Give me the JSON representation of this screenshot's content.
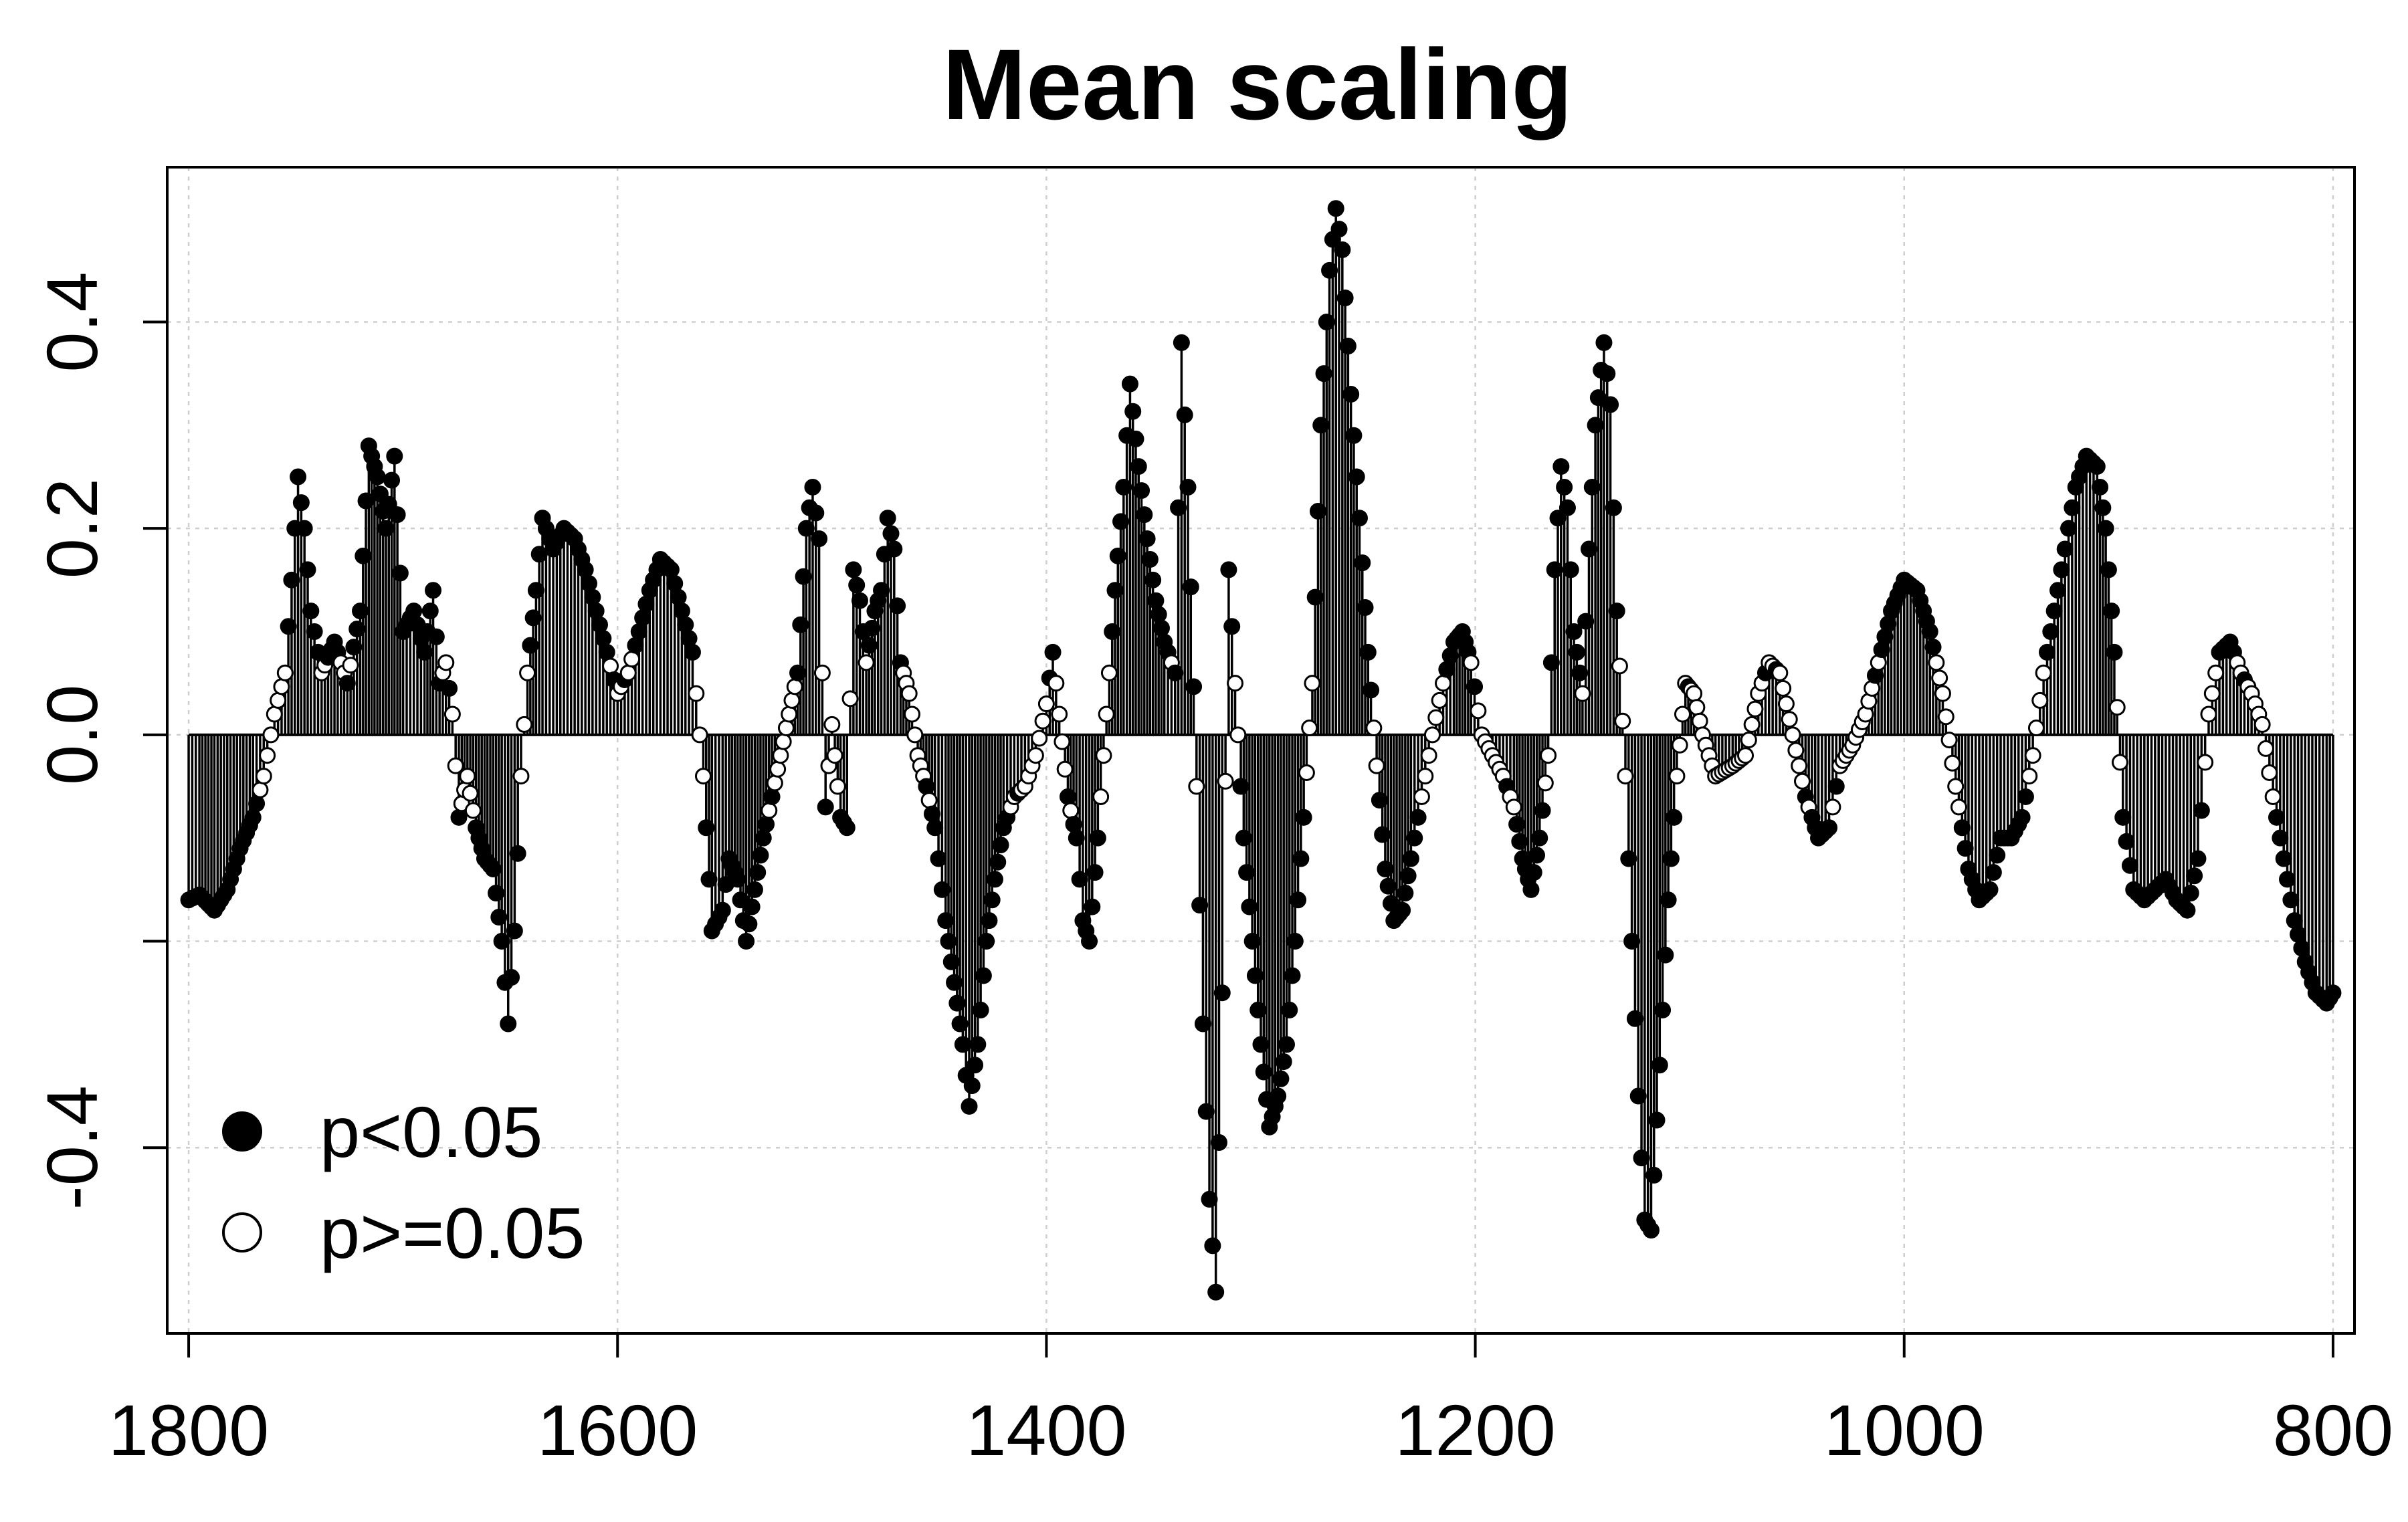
{
  "chart_data": {
    "type": "scatter",
    "title": "Mean scaling",
    "xlabel": "",
    "ylabel": "",
    "x_reversed": true,
    "xlim": [
      1810,
      790
    ],
    "ylim": [
      -0.58,
      0.55
    ],
    "x_ticks": [
      1800,
      1600,
      1400,
      1200,
      1000,
      800
    ],
    "x_tick_labels": [
      "1800",
      "1600",
      "1400",
      "1200",
      "1000",
      "800"
    ],
    "y_ticks": [
      -0.4,
      -0.2,
      0.0,
      0.2,
      0.4
    ],
    "y_tick_labels": [
      "-0.4",
      "",
      "0.0",
      "0.2",
      "0.4"
    ],
    "grid": true,
    "style": "vertical lines from zero to each point",
    "legend": {
      "position": "bottom-left",
      "entries": [
        {
          "label": "p<0.05",
          "marker": "filled-circle"
        },
        {
          "label": "p>=0.05",
          "marker": "open-circle"
        }
      ]
    },
    "colors": {
      "marker": "#000000",
      "grid": "#cfcfcf"
    },
    "profile_points": [
      [
        1800,
        -0.16
      ],
      [
        1795,
        -0.155
      ],
      [
        1788,
        -0.17
      ],
      [
        1782,
        -0.15
      ],
      [
        1776,
        -0.11
      ],
      [
        1770,
        -0.08
      ],
      [
        1765,
        -0.04
      ],
      [
        1760,
        0.02
      ],
      [
        1755,
        0.06
      ],
      [
        1752,
        0.15
      ],
      [
        1749,
        0.25
      ],
      [
        1746,
        0.2
      ],
      [
        1743,
        0.12
      ],
      [
        1738,
        0.06
      ],
      [
        1732,
        0.09
      ],
      [
        1726,
        0.05
      ],
      [
        1720,
        0.12
      ],
      [
        1716,
        0.28
      ],
      [
        1712,
        0.25
      ],
      [
        1708,
        0.2
      ],
      [
        1704,
        0.27
      ],
      [
        1700,
        0.1
      ],
      [
        1695,
        0.12
      ],
      [
        1690,
        0.08
      ],
      [
        1686,
        0.14
      ],
      [
        1683,
        0.05
      ],
      [
        1680,
        0.07
      ],
      [
        1677,
        0.02
      ],
      [
        1674,
        -0.08
      ],
      [
        1670,
        -0.04
      ],
      [
        1666,
        -0.09
      ],
      [
        1662,
        -0.12
      ],
      [
        1658,
        -0.13
      ],
      [
        1654,
        -0.2
      ],
      [
        1651,
        -0.28
      ],
      [
        1648,
        -0.19
      ],
      [
        1645,
        -0.04
      ],
      [
        1642,
        0.06
      ],
      [
        1638,
        0.14
      ],
      [
        1635,
        0.21
      ],
      [
        1630,
        0.18
      ],
      [
        1625,
        0.2
      ],
      [
        1620,
        0.19
      ],
      [
        1615,
        0.16
      ],
      [
        1610,
        0.12
      ],
      [
        1605,
        0.08
      ],
      [
        1600,
        0.04
      ],
      [
        1595,
        0.06
      ],
      [
        1590,
        0.1
      ],
      [
        1585,
        0.14
      ],
      [
        1580,
        0.17
      ],
      [
        1575,
        0.16
      ],
      [
        1570,
        0.12
      ],
      [
        1565,
        0.08
      ],
      [
        1560,
        -0.04
      ],
      [
        1556,
        -0.19
      ],
      [
        1551,
        -0.17
      ],
      [
        1548,
        -0.12
      ],
      [
        1544,
        -0.14
      ],
      [
        1540,
        -0.2
      ],
      [
        1536,
        -0.15
      ],
      [
        1532,
        -0.1
      ],
      [
        1528,
        -0.06
      ],
      [
        1524,
        -0.02
      ],
      [
        1520,
        0.02
      ],
      [
        1516,
        0.06
      ],
      [
        1512,
        0.2
      ],
      [
        1509,
        0.24
      ],
      [
        1506,
        0.19
      ],
      [
        1503,
        -0.07
      ],
      [
        1500,
        0.01
      ],
      [
        1496,
        -0.08
      ],
      [
        1493,
        -0.09
      ],
      [
        1490,
        0.16
      ],
      [
        1487,
        0.13
      ],
      [
        1484,
        0.07
      ],
      [
        1480,
        0.12
      ],
      [
        1477,
        0.14
      ],
      [
        1474,
        0.21
      ],
      [
        1471,
        0.18
      ],
      [
        1468,
        0.07
      ],
      [
        1464,
        0.04
      ],
      [
        1460,
        -0.02
      ],
      [
        1456,
        -0.05
      ],
      [
        1452,
        -0.09
      ],
      [
        1447,
        -0.18
      ],
      [
        1443,
        -0.24
      ],
      [
        1439,
        -0.3
      ],
      [
        1436,
        -0.36
      ],
      [
        1432,
        -0.3
      ],
      [
        1428,
        -0.2
      ],
      [
        1424,
        -0.14
      ],
      [
        1420,
        -0.09
      ],
      [
        1415,
        -0.06
      ],
      [
        1410,
        -0.05
      ],
      [
        1405,
        -0.02
      ],
      [
        1400,
        0.03
      ],
      [
        1397,
        0.08
      ],
      [
        1394,
        0.02
      ],
      [
        1390,
        -0.06
      ],
      [
        1386,
        -0.1
      ],
      [
        1383,
        -0.18
      ],
      [
        1380,
        -0.2
      ],
      [
        1376,
        -0.1
      ],
      [
        1372,
        0.02
      ],
      [
        1368,
        0.14
      ],
      [
        1364,
        0.24
      ],
      [
        1361,
        0.34
      ],
      [
        1357,
        0.26
      ],
      [
        1353,
        0.19
      ],
      [
        1349,
        0.13
      ],
      [
        1345,
        0.09
      ],
      [
        1340,
        0.06
      ],
      [
        1337,
        0.38
      ],
      [
        1334,
        0.24
      ],
      [
        1330,
        -0.05
      ],
      [
        1327,
        -0.28
      ],
      [
        1324,
        -0.45
      ],
      [
        1321,
        -0.54
      ],
      [
        1318,
        -0.25
      ],
      [
        1315,
        0.16
      ],
      [
        1312,
        0.05
      ],
      [
        1308,
        -0.1
      ],
      [
        1304,
        -0.2
      ],
      [
        1300,
        -0.3
      ],
      [
        1296,
        -0.38
      ],
      [
        1292,
        -0.35
      ],
      [
        1288,
        -0.3
      ],
      [
        1284,
        -0.2
      ],
      [
        1280,
        -0.08
      ],
      [
        1276,
        0.05
      ],
      [
        1272,
        0.3
      ],
      [
        1268,
        0.45
      ],
      [
        1265,
        0.51
      ],
      [
        1262,
        0.47
      ],
      [
        1258,
        0.33
      ],
      [
        1254,
        0.21
      ],
      [
        1250,
        0.08
      ],
      [
        1246,
        -0.03
      ],
      [
        1242,
        -0.13
      ],
      [
        1238,
        -0.18
      ],
      [
        1234,
        -0.17
      ],
      [
        1230,
        -0.12
      ],
      [
        1225,
        -0.06
      ],
      [
        1220,
        0.0
      ],
      [
        1215,
        0.05
      ],
      [
        1210,
        0.09
      ],
      [
        1206,
        0.1
      ],
      [
        1202,
        0.07
      ],
      [
        1197,
        0.0
      ],
      [
        1192,
        -0.02
      ],
      [
        1187,
        -0.04
      ],
      [
        1182,
        -0.07
      ],
      [
        1178,
        -0.12
      ],
      [
        1174,
        -0.15
      ],
      [
        1170,
        -0.1
      ],
      [
        1166,
        -0.02
      ],
      [
        1163,
        0.16
      ],
      [
        1160,
        0.26
      ],
      [
        1157,
        0.22
      ],
      [
        1154,
        0.1
      ],
      [
        1150,
        0.04
      ],
      [
        1147,
        0.18
      ],
      [
        1144,
        0.3
      ],
      [
        1140,
        0.38
      ],
      [
        1137,
        0.32
      ],
      [
        1134,
        0.12
      ],
      [
        1130,
        -0.04
      ],
      [
        1127,
        -0.2
      ],
      [
        1124,
        -0.35
      ],
      [
        1121,
        -0.47
      ],
      [
        1118,
        -0.48
      ],
      [
        1114,
        -0.32
      ],
      [
        1110,
        -0.16
      ],
      [
        1106,
        -0.04
      ],
      [
        1102,
        0.05
      ],
      [
        1098,
        0.04
      ],
      [
        1094,
        0.0
      ],
      [
        1088,
        -0.04
      ],
      [
        1080,
        -0.03
      ],
      [
        1074,
        -0.02
      ],
      [
        1068,
        0.04
      ],
      [
        1063,
        0.07
      ],
      [
        1058,
        0.06
      ],
      [
        1052,
        0.0
      ],
      [
        1046,
        -0.06
      ],
      [
        1040,
        -0.1
      ],
      [
        1035,
        -0.09
      ],
      [
        1030,
        -0.03
      ],
      [
        1024,
        -0.01
      ],
      [
        1018,
        0.02
      ],
      [
        1012,
        0.07
      ],
      [
        1006,
        0.12
      ],
      [
        1000,
        0.15
      ],
      [
        994,
        0.14
      ],
      [
        988,
        0.1
      ],
      [
        982,
        0.04
      ],
      [
        976,
        -0.05
      ],
      [
        970,
        -0.13
      ],
      [
        965,
        -0.16
      ],
      [
        960,
        -0.15
      ],
      [
        955,
        -0.1
      ],
      [
        950,
        -0.1
      ],
      [
        945,
        -0.08
      ],
      [
        940,
        -0.02
      ],
      [
        935,
        0.06
      ],
      [
        930,
        0.12
      ],
      [
        925,
        0.18
      ],
      [
        920,
        0.24
      ],
      [
        915,
        0.27
      ],
      [
        910,
        0.26
      ],
      [
        906,
        0.2
      ],
      [
        902,
        0.08
      ],
      [
        898,
        -0.08
      ],
      [
        893,
        -0.15
      ],
      [
        888,
        -0.16
      ],
      [
        883,
        -0.15
      ],
      [
        878,
        -0.14
      ],
      [
        873,
        -0.16
      ],
      [
        868,
        -0.17
      ],
      [
        863,
        -0.12
      ],
      [
        858,
        0.02
      ],
      [
        853,
        0.08
      ],
      [
        848,
        0.09
      ],
      [
        843,
        0.06
      ],
      [
        838,
        0.04
      ],
      [
        833,
        0.01
      ],
      [
        828,
        -0.06
      ],
      [
        823,
        -0.12
      ],
      [
        818,
        -0.18
      ],
      [
        813,
        -0.22
      ],
      [
        808,
        -0.25
      ],
      [
        803,
        -0.26
      ],
      [
        800,
        -0.25
      ]
    ]
  }
}
